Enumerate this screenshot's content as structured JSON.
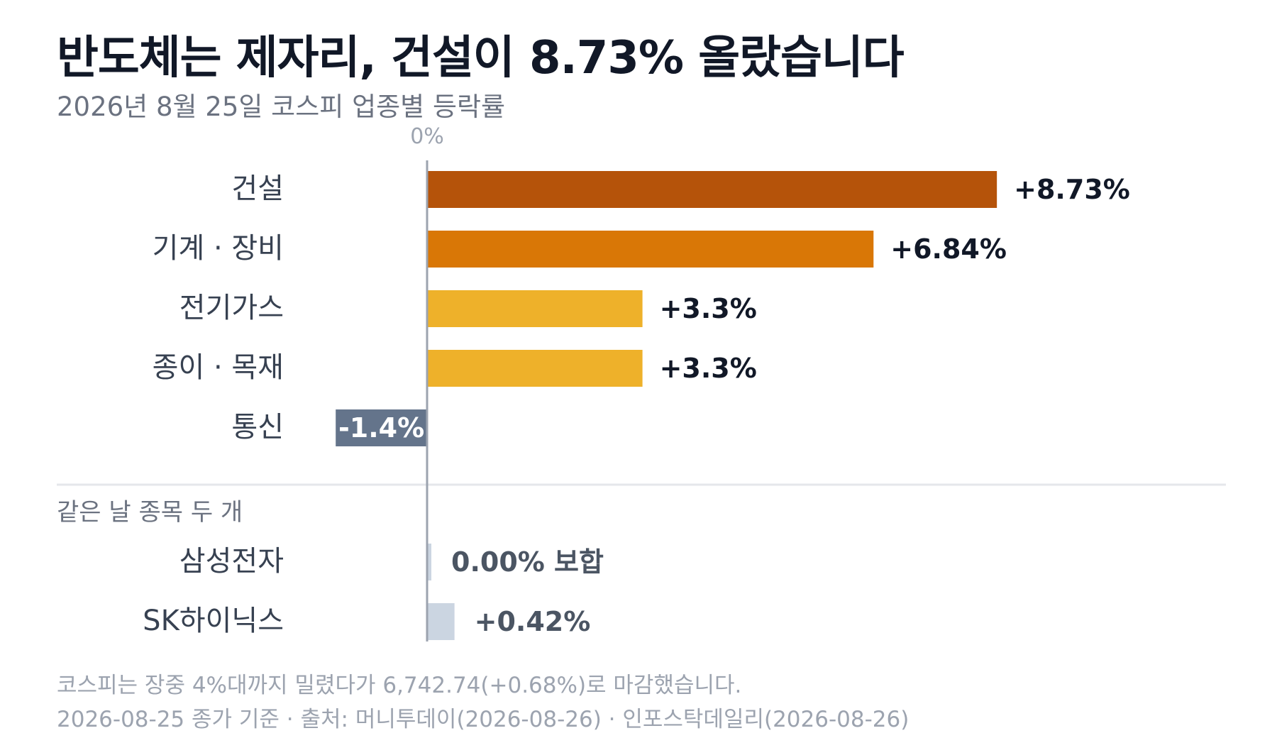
{
  "title": "반도체는 제자리, 건설이 8.73% 올랐습니다",
  "subtitle": "2026년 8월 25일 코스피 업종별 등락률",
  "footer": {
    "note": "코스피는 장중 4%대까지 밀렸다가 6,742.74(+0.68%)로 마감했습니다.",
    "source": "2026-08-25 종가 기준 · 출처: 머니투데이(2026-08-26) · 인포스탁데일리(2026-08-26)"
  },
  "chart_data": {
    "type": "bar",
    "orientation": "horizontal",
    "zero_label": "0%",
    "sections": [
      {
        "label": "",
        "items": [
          {
            "category": "건설",
            "value": 8.73,
            "label": "+8.73%",
            "color": "#b5530a"
          },
          {
            "category": "기계 · 장비",
            "value": 6.84,
            "label": "+6.84%",
            "color": "#d97706"
          },
          {
            "category": "전기가스",
            "value": 3.3,
            "label": "+3.3%",
            "color": "#eeb12a"
          },
          {
            "category": "종이 · 목재",
            "value": 3.3,
            "label": "+3.3%",
            "color": "#eeb12a"
          },
          {
            "category": "통신",
            "value": -1.4,
            "label": "-1.4%",
            "color": "#64748b"
          }
        ]
      },
      {
        "label": "같은 날 종목 두 개",
        "items": [
          {
            "category": "삼성전자",
            "value": 0.0,
            "label": "0.00% 보합",
            "color": "#cbd5e1"
          },
          {
            "category": "SK하이닉스",
            "value": 0.42,
            "label": "+0.42%",
            "color": "#cbd5e1"
          }
        ]
      }
    ],
    "colors": {
      "axis": "#9ca3af",
      "divider": "#e5e7eb",
      "category_text": "#374151",
      "value_text_primary": "#111827",
      "value_text_secondary": "#4b5563",
      "negative_label_text": "#ffffff"
    }
  }
}
